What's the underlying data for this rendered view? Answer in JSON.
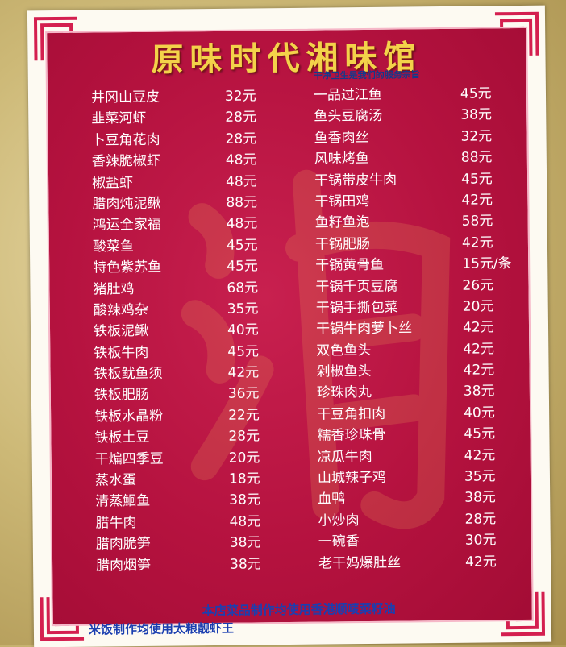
{
  "title": "原味时代湘味馆",
  "slogan": "干净卫生是我们的服务宗旨",
  "left_items": [
    {
      "dish": "井冈山豆皮",
      "price": "32元"
    },
    {
      "dish": "韭菜河虾",
      "price": "28元"
    },
    {
      "dish": "卜豆角花肉",
      "price": "28元"
    },
    {
      "dish": "香辣脆椒虾",
      "price": "48元"
    },
    {
      "dish": "椒盐虾",
      "price": "48元"
    },
    {
      "dish": "腊肉炖泥鳅",
      "price": "88元"
    },
    {
      "dish": "鸿运全家福",
      "price": "48元"
    },
    {
      "dish": "酸菜鱼",
      "price": "45元"
    },
    {
      "dish": "特色紫苏鱼",
      "price": "45元"
    },
    {
      "dish": "猪肚鸡",
      "price": "68元"
    },
    {
      "dish": "酸辣鸡杂",
      "price": "35元"
    },
    {
      "dish": "铁板泥鳅",
      "price": "40元"
    },
    {
      "dish": "铁板牛肉",
      "price": "45元"
    },
    {
      "dish": "铁板鱿鱼须",
      "price": "42元"
    },
    {
      "dish": "铁板肥肠",
      "price": "36元"
    },
    {
      "dish": "铁板水晶粉",
      "price": "22元"
    },
    {
      "dish": "铁板土豆",
      "price": "28元"
    },
    {
      "dish": "干煸四季豆",
      "price": "20元"
    },
    {
      "dish": "蒸水蛋",
      "price": "18元"
    },
    {
      "dish": "清蒸鮰鱼",
      "price": "38元"
    },
    {
      "dish": "腊牛肉",
      "price": "48元"
    },
    {
      "dish": "腊肉脆笋",
      "price": "38元"
    },
    {
      "dish": "腊肉烟笋",
      "price": "38元"
    }
  ],
  "right_items": [
    {
      "dish": "一品过江鱼",
      "price": "45元"
    },
    {
      "dish": "鱼头豆腐汤",
      "price": "38元"
    },
    {
      "dish": "鱼香肉丝",
      "price": "32元"
    },
    {
      "dish": "风味烤鱼",
      "price": "88元"
    },
    {
      "dish": "干锅带皮牛肉",
      "price": "45元"
    },
    {
      "dish": "干锅田鸡",
      "price": "42元"
    },
    {
      "dish": "鱼籽鱼泡",
      "price": "58元"
    },
    {
      "dish": "干锅肥肠",
      "price": "42元"
    },
    {
      "dish": "干锅黄骨鱼",
      "price": "15元/条"
    },
    {
      "dish": "干锅千页豆腐",
      "price": "26元"
    },
    {
      "dish": "干锅手撕包菜",
      "price": "20元"
    },
    {
      "dish": "干锅牛肉萝卜丝",
      "price": "42元"
    },
    {
      "dish": "双色鱼头",
      "price": "42元"
    },
    {
      "dish": "剁椒鱼头",
      "price": "42元"
    },
    {
      "dish": "珍珠肉丸",
      "price": "38元"
    },
    {
      "dish": "干豆角扣肉",
      "price": "40元"
    },
    {
      "dish": "糯香珍珠骨",
      "price": "45元"
    },
    {
      "dish": "凉瓜牛肉",
      "price": "42元"
    },
    {
      "dish": "山城辣子鸡",
      "price": "35元"
    },
    {
      "dish": "血鸭",
      "price": "38元"
    },
    {
      "dish": "小炒肉",
      "price": "28元"
    },
    {
      "dish": "一碗香",
      "price": "30元"
    },
    {
      "dish": "老干妈爆肚丝",
      "price": "42元"
    }
  ],
  "footer": {
    "line1": "本店菜品制作均使用香港顺唛菜籽油",
    "line2": "米饭制作均使用太粮靓虾王"
  },
  "colors": {
    "panel": "#b5123f",
    "title": "#f3d24a",
    "footer": "#1b3fb0"
  }
}
